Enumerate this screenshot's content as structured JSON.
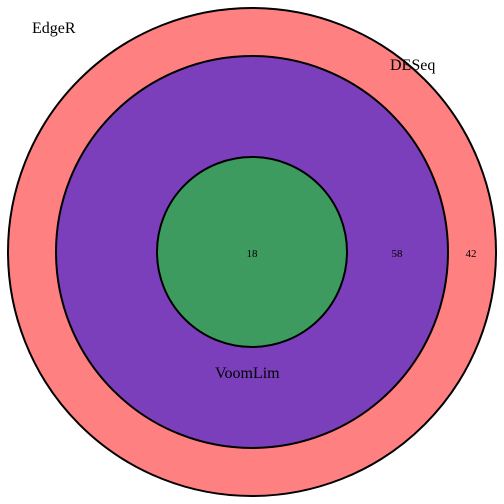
{
  "diagram": {
    "type": "nested-venn",
    "sets": [
      {
        "name": "EdgeR",
        "color": "#ff8080"
      },
      {
        "name": "DESeq",
        "color": "#7b3fbb"
      },
      {
        "name": "VoomLim",
        "color": "#3e9b5f"
      }
    ],
    "regions": [
      {
        "sets": [
          "EdgeR",
          "DESeq",
          "VoomLim"
        ],
        "count": "18"
      },
      {
        "sets": [
          "EdgeR",
          "DESeq"
        ],
        "count": "58"
      },
      {
        "sets": [
          "EdgeR"
        ],
        "count": "42"
      }
    ]
  }
}
